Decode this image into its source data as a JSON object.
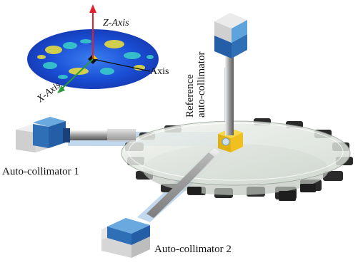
{
  "labels": {
    "reference_line1": "Reference",
    "reference_line2": "auto-collimator",
    "ac1": "Auto-collimator 1",
    "ac2": "Auto-collimator 2",
    "z_axis": "Z-Axis",
    "y_axis": "Axis",
    "x_axis": "X-Axis"
  },
  "colors": {
    "collimator_blue": "#2f6fb5",
    "collimator_gray": "#d8d8d8",
    "beam": "#8fb8e0",
    "plate": "#e6ece6",
    "cube": "#f0c020",
    "z_arrow": "#e0202a",
    "x_arrow": "#2a9a3a",
    "map_blue": "#1d4fd8"
  }
}
